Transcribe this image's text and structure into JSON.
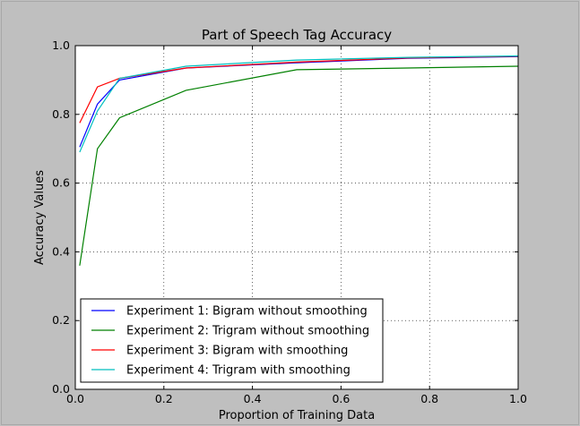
{
  "chart_data": {
    "type": "line",
    "title": "Part of Speech Tag Accuracy",
    "xlabel": "Proportion of Training Data",
    "ylabel": "Accuracy Values",
    "xlim": [
      0.0,
      1.0
    ],
    "ylim": [
      0.0,
      1.0
    ],
    "xticks": [
      0.0,
      0.2,
      0.4,
      0.6,
      0.8,
      1.0
    ],
    "xtick_labels": [
      "0.0",
      "0.2",
      "0.4",
      "0.6",
      "0.8",
      "1.0"
    ],
    "yticks": [
      0.0,
      0.2,
      0.4,
      0.6,
      0.8,
      1.0
    ],
    "ytick_labels": [
      "0.0",
      "0.2",
      "0.4",
      "0.6",
      "0.8",
      "1.0"
    ],
    "grid": true,
    "legend_position": "bottom-left",
    "x": [
      0.01,
      0.05,
      0.1,
      0.25,
      0.5,
      0.75,
      1.0
    ],
    "series": [
      {
        "name": "Experiment 1: Bigram without smoothing",
        "color": "#0000ff",
        "values": [
          0.705,
          0.83,
          0.9,
          0.935,
          0.95,
          0.963,
          0.968
        ]
      },
      {
        "name": "Experiment 2: Trigram without smoothing",
        "color": "#008000",
        "values": [
          0.36,
          0.7,
          0.79,
          0.87,
          0.93,
          0.935,
          0.94
        ]
      },
      {
        "name": "Experiment 3: Bigram with smoothing",
        "color": "#ff0000",
        "values": [
          0.775,
          0.88,
          0.905,
          0.935,
          0.952,
          0.964,
          0.969
        ]
      },
      {
        "name": "Experiment 4: Trigram with smoothing",
        "color": "#00bfbf",
        "values": [
          0.69,
          0.81,
          0.905,
          0.94,
          0.958,
          0.966,
          0.97
        ]
      }
    ]
  }
}
